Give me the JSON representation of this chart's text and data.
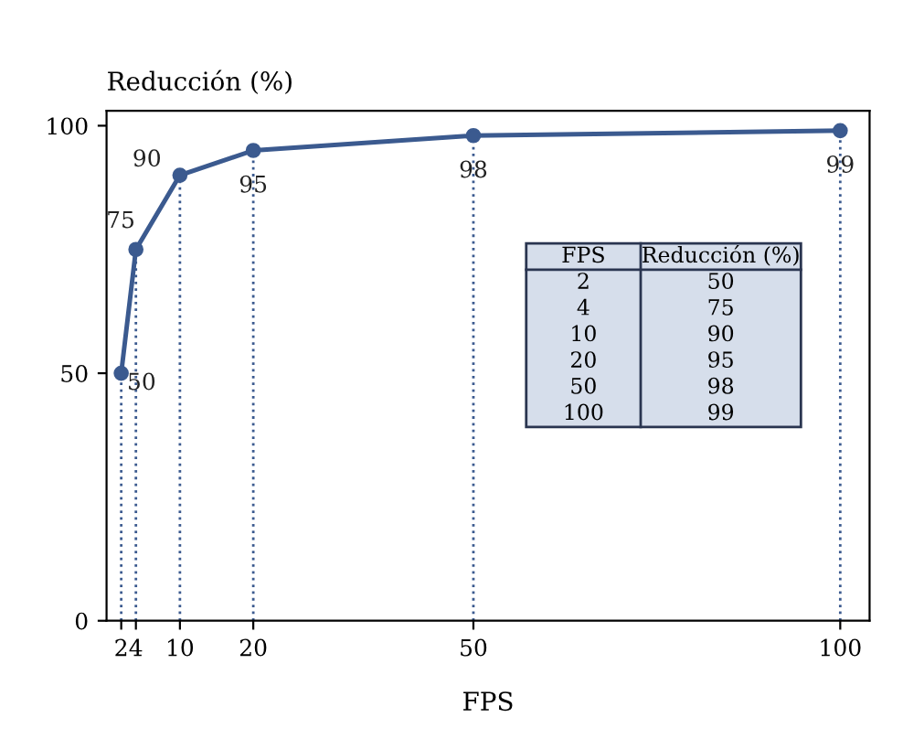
{
  "chart_data": {
    "type": "line",
    "xlabel": "FPS",
    "ylabel": "Reducción (%)",
    "x": [
      2,
      4,
      10,
      20,
      50,
      100
    ],
    "series": [
      {
        "color": "#3b5a8f",
        "values": [
          50,
          75,
          90,
          95,
          98,
          99
        ]
      }
    ],
    "xlim": [
      0,
      104
    ],
    "ylim": [
      0,
      103
    ],
    "xticks": [
      2,
      4,
      10,
      20,
      50,
      100
    ],
    "yticks": [
      0,
      50,
      100
    ],
    "annotations": [
      "2",
      "50",
      "4",
      "75",
      "10",
      "90",
      "20",
      "95",
      "50",
      "98",
      "100",
      "99"
    ],
    "marker": "circle",
    "line_style": "solid",
    "data_labels": true,
    "grid": false,
    "legend": false,
    "ref_lines": [
      {
        "axis": "x",
        "value": 2,
        "line_style": "dotted",
        "color": "#3b5a8f"
      },
      {
        "axis": "x",
        "value": 4,
        "line_style": "dotted",
        "color": "#3b5a8f"
      },
      {
        "axis": "x",
        "value": 10,
        "line_style": "dotted",
        "color": "#3b5a8f"
      },
      {
        "axis": "x",
        "value": 20,
        "line_style": "dotted",
        "color": "#3b5a8f"
      },
      {
        "axis": "x",
        "value": 50,
        "line_style": "dotted",
        "color": "#3b5a8f"
      },
      {
        "axis": "x",
        "value": 100,
        "line_style": "dotted",
        "color": "#3b5a8f"
      }
    ]
  }
}
